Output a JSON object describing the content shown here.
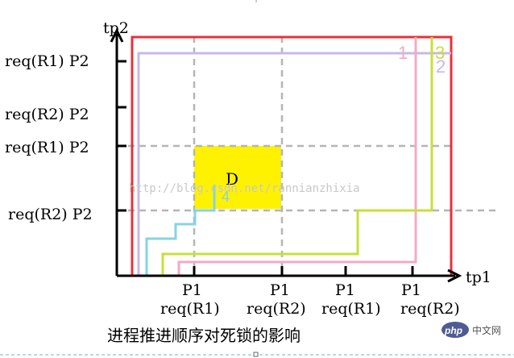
{
  "axes": {
    "x_label": "tp1",
    "y_label": "tp2"
  },
  "y_ticks": [
    "req(R1) P2",
    "req(R2) P2",
    "req(R1) P2",
    "req(R2) P2"
  ],
  "x_ticks": [
    {
      "proc": "P1",
      "req": "req(R1)"
    },
    {
      "proc": "P1",
      "req": "req(R2)"
    },
    {
      "proc": "P1",
      "req": "req(R1)"
    },
    {
      "proc": "P1",
      "req": "req(R2)"
    }
  ],
  "region": {
    "label": "D",
    "color": "#fff200"
  },
  "paths": [
    {
      "label": "1",
      "color": "#f4a9c4"
    },
    {
      "label": "2",
      "color": "#c9b8e6"
    },
    {
      "label": "3",
      "color": "#c6e03a"
    },
    {
      "label": "4",
      "color": "#86d3e3"
    }
  ],
  "outer_color": "#e8303a",
  "caption": "进程推进顺序对死锁的影响",
  "watermark": "http://blog.csdn.net/rannianzhixia",
  "logo": {
    "brand": "php",
    "site": "中文网"
  }
}
